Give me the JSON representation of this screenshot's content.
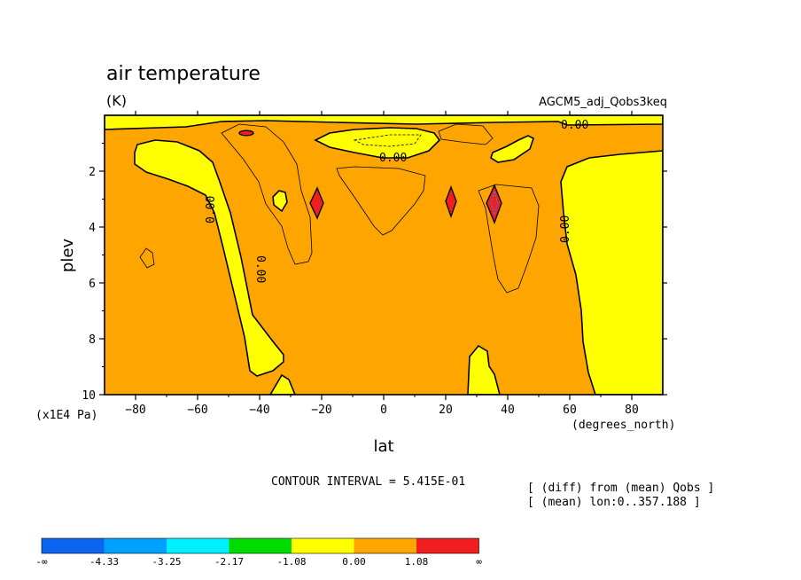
{
  "chart_data": {
    "type": "contour",
    "title": "air temperature",
    "units": "(K)",
    "dataset": "AGCM5_adj_Qobs3keq",
    "xlabel": "lat",
    "xunits": "(degrees_north)",
    "ylabel": "plev",
    "yunits": "(x1E4 Pa)",
    "xlim": [
      -90,
      90
    ],
    "ylim": [
      10,
      0
    ],
    "x_ticks": [
      -80,
      -60,
      -40,
      -20,
      0,
      20,
      40,
      60,
      80
    ],
    "y_ticks": [
      2,
      4,
      6,
      8,
      10
    ],
    "contour_interval_text": "CONTOUR INTERVAL = 5.415E-01",
    "contour_labels": [
      "0.00",
      "0.00",
      "0.00",
      "0.00",
      "0.00"
    ],
    "notes": [
      "[ (diff) from (mean) Qobs ]",
      "[ (mean) lon:0..357.188 ]"
    ],
    "colorbar": {
      "labels": [
        "-∞",
        "-4.33",
        "-3.25",
        "-2.17",
        "-1.08",
        "0.00",
        "1.08",
        "∞"
      ],
      "colors": [
        "#0a64f0",
        "#00a0ff",
        "#00f0ff",
        "#00dc00",
        "#ffff00",
        "#ffa500",
        "#f01e1e"
      ]
    },
    "regions": {
      "background_range": "0.00 to 1.08",
      "background_color": "#ffa500",
      "yellow_range": "-1.08 to 0.00",
      "yellow_color": "#ffff00",
      "red_range": "> 1.08",
      "red_color": "#f01e1e",
      "red_cores": [
        {
          "lat": -44,
          "plev": 0.6
        },
        {
          "lat": -21,
          "plev": 3.1
        },
        {
          "lat": 21,
          "plev": 3.1
        },
        {
          "lat": 36,
          "plev": 3.1
        }
      ]
    }
  }
}
